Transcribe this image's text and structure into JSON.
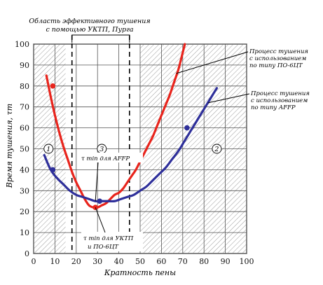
{
  "chart_data": {
    "type": "line",
    "title": "",
    "xlabel": "Кратность пены",
    "ylabel": "Время тушения, τт",
    "xlim": [
      0,
      100
    ],
    "ylim": [
      0,
      100
    ],
    "x_ticks": [
      0,
      10,
      20,
      30,
      40,
      50,
      60,
      70,
      80,
      90,
      100
    ],
    "y_ticks": [
      0,
      10,
      20,
      30,
      40,
      50,
      60,
      70,
      80,
      90,
      100
    ],
    "grid": true,
    "series": [
      {
        "name": "Процесс тушения с использованием по типу ПО-6ЦТ",
        "color": "#e8241c",
        "x": [
          6,
          8,
          10,
          12,
          14,
          16,
          18,
          20,
          22,
          24,
          26,
          28,
          30,
          32,
          34,
          36,
          38,
          40,
          42,
          44,
          46,
          48,
          50,
          52,
          54,
          56,
          58,
          60,
          62,
          64,
          66,
          68,
          70,
          71
        ],
        "y": [
          85,
          75,
          66,
          58,
          51,
          45,
          39,
          34,
          30,
          26,
          23,
          22,
          22,
          23,
          24,
          26,
          28,
          29,
          31,
          34,
          37,
          40,
          44,
          48,
          52,
          56,
          61,
          66,
          71,
          76,
          82,
          88,
          96,
          100
        ],
        "markers_x": [
          9,
          29
        ],
        "markers_y": [
          80,
          22
        ]
      },
      {
        "name": "Процесс тушения с использованием по типу AFFP",
        "color": "#2e2f9a",
        "x": [
          5,
          8,
          11,
          14,
          17,
          20,
          23,
          26,
          29,
          32,
          35,
          38,
          41,
          44,
          47,
          50,
          53,
          56,
          59,
          62,
          65,
          68,
          71,
          74,
          77,
          80,
          83,
          86
        ],
        "y": [
          47,
          40,
          36,
          33,
          30,
          28,
          27,
          26,
          25,
          25,
          25,
          25,
          26,
          27,
          28,
          30,
          32,
          35,
          38,
          41,
          45,
          49,
          54,
          59,
          64,
          69,
          74,
          79
        ],
        "markers_x": [
          9,
          31,
          72
        ],
        "markers_y": [
          40,
          25,
          60
        ]
      }
    ],
    "regions": [
      {
        "label": "1",
        "x_range": [
          0,
          15
        ],
        "hatched": true
      },
      {
        "label": "3",
        "x_range": [
          15,
          50
        ],
        "hatched": false
      },
      {
        "label": "2",
        "x_range": [
          50,
          100
        ],
        "hatched": true
      }
    ],
    "region_label_y": 50,
    "dashed_lines_x": [
      18,
      45
    ],
    "effective_zone": {
      "x_range": [
        18,
        45
      ],
      "label": "Область эффективного тушения с помощью УКТП, Пурга"
    },
    "annotations": [
      {
        "text": "τ min для AFFP",
        "target_x": 29,
        "target_y": 25
      },
      {
        "text": "τ min для УКТП и ПО-6ЦТ",
        "target_x": 29,
        "target_y": 22
      }
    ]
  }
}
